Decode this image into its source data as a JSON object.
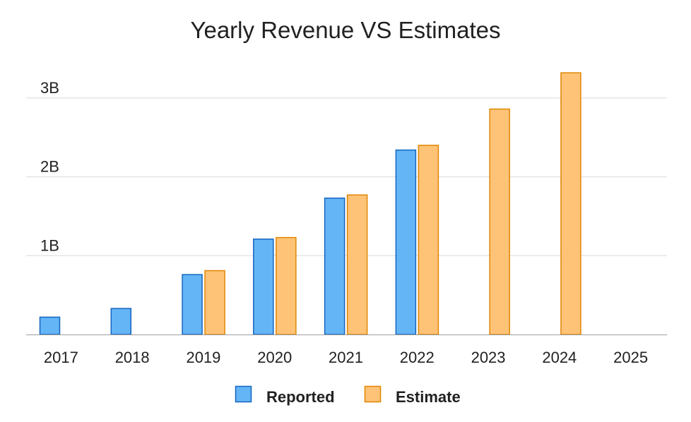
{
  "chart_data": {
    "type": "bar",
    "title": "Yearly Revenue VS Estimates",
    "categories": [
      "2017",
      "2018",
      "2019",
      "2020",
      "2021",
      "2022",
      "2023",
      "2024",
      "2025"
    ],
    "series": [
      {
        "name": "Reported",
        "color": "#64b5f6",
        "stroke": "#1565c0",
        "values": [
          0.22,
          0.33,
          0.76,
          1.21,
          1.73,
          2.34,
          null,
          null,
          null
        ]
      },
      {
        "name": "Estimate",
        "color": "#ffc378",
        "stroke": "#e08600",
        "values": [
          null,
          null,
          0.81,
          1.23,
          1.77,
          2.4,
          2.86,
          3.32,
          null
        ]
      }
    ],
    "ylim": [
      0,
      3.3
    ],
    "yticks": [
      1,
      2,
      3
    ],
    "ytick_labels": [
      "1B",
      "2B",
      "3B"
    ],
    "xlabel": "",
    "ylabel": "",
    "grid": true,
    "legend_position": "bottom"
  }
}
